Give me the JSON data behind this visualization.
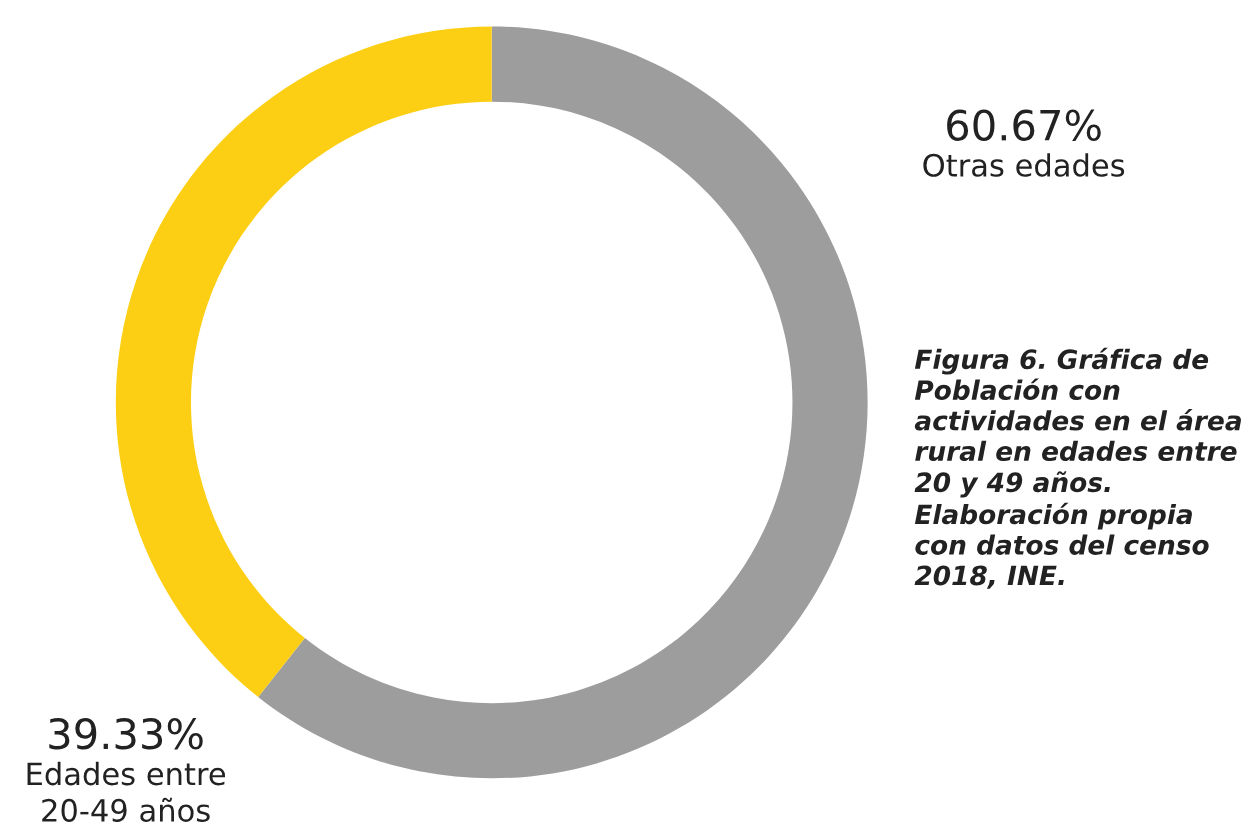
{
  "chart_data": {
    "type": "donut",
    "categories": [
      "Otras edades",
      "Edades entre\n20-49 años"
    ],
    "values": [
      60.67,
      39.33
    ],
    "value_labels": [
      "60.67%",
      "39.33%"
    ],
    "colors": [
      "#9d9d9d",
      "#fccf14"
    ],
    "legend": false,
    "annotations": [
      "Figura 6. Gráfica de Población con actividades en el área rural en edades entre 20 y 49 años. Elaboración propia con datos del censo 2018, INE."
    ]
  }
}
